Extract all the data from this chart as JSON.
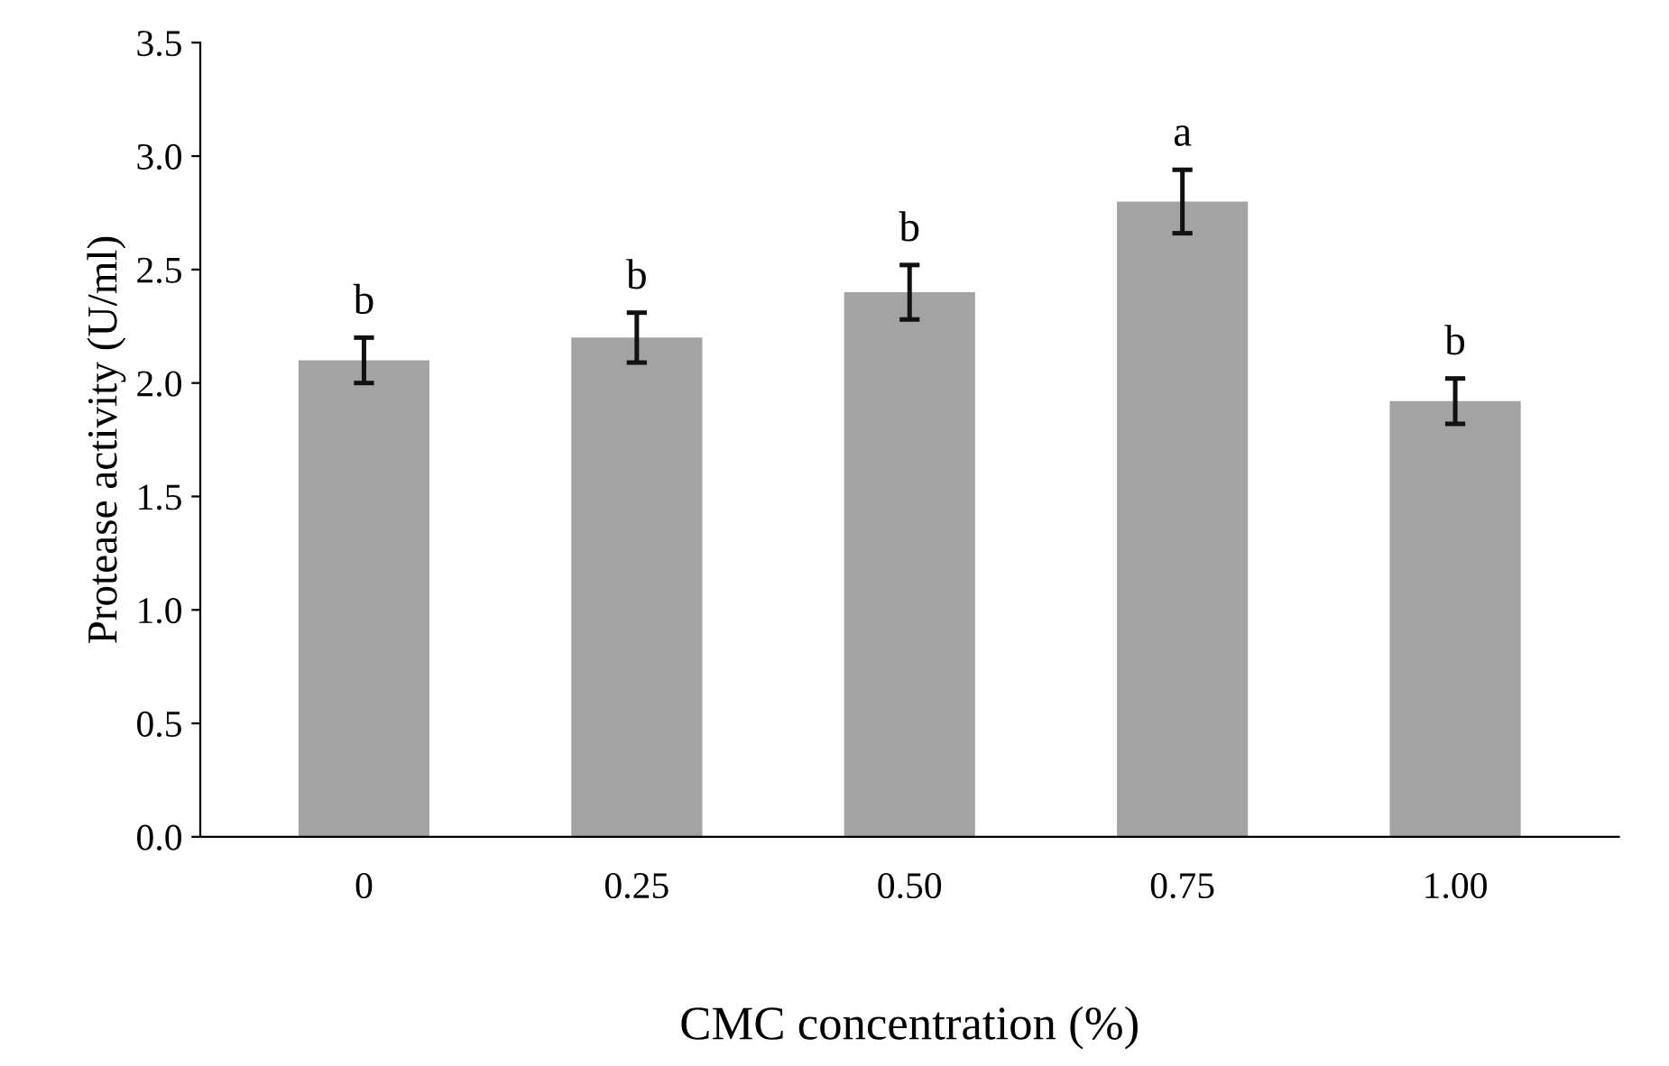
{
  "chart_data": {
    "type": "bar",
    "xlabel": "CMC concentration (%)",
    "ylabel": "Protease activity (U/ml)",
    "categories": [
      "0",
      "0.25",
      "0.50",
      "0.75",
      "1.00"
    ],
    "values": [
      2.1,
      2.2,
      2.4,
      2.8,
      1.92
    ],
    "errors": [
      0.1,
      0.11,
      0.12,
      0.14,
      0.1
    ],
    "color": "#a3a3a3",
    "ylim": [
      0,
      3.5
    ],
    "yticks": [
      {
        "value": 0,
        "label": "0.0"
      },
      {
        "value": 0.5,
        "label": "0.5"
      },
      {
        "value": 1,
        "label": "1.0"
      },
      {
        "value": 1.5,
        "label": "1.5"
      },
      {
        "value": 2,
        "label": "2.0"
      },
      {
        "value": 2.5,
        "label": "2.5"
      },
      {
        "value": 3,
        "label": "3.0"
      },
      {
        "value": 3.5,
        "label": "3.5"
      }
    ],
    "annotations": [
      {
        "text": "b",
        "x": "0",
        "y": 2.2
      },
      {
        "text": "b",
        "x": "0.25",
        "y": 2.31
      },
      {
        "text": "b",
        "x": "0.50",
        "y": 2.52
      },
      {
        "text": "a",
        "x": "0.75",
        "y": 2.94
      },
      {
        "text": "b",
        "x": "1.00",
        "y": 2.02
      }
    ],
    "grid": false,
    "legend": false
  }
}
